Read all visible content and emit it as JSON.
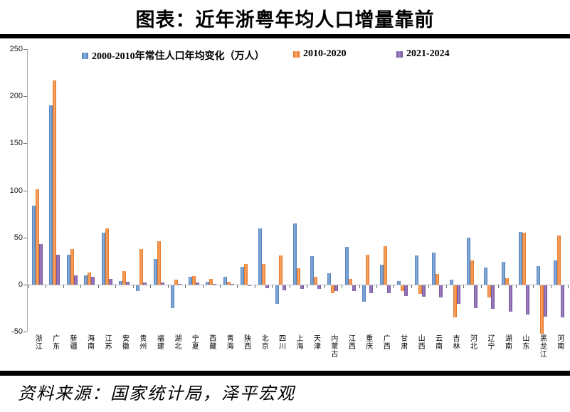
{
  "title": "图表：近年浙粤年均人口增量靠前",
  "source": "资料来源：国家统计局，泽平宏观",
  "chart_data": {
    "type": "bar",
    "title": "近年浙粤年均人口增量靠前",
    "unit": "万人",
    "ylim": [
      -50,
      250
    ],
    "y_ticks": [
      250,
      200,
      150,
      100,
      50,
      0,
      -50
    ],
    "grid": false,
    "legend_position": "top",
    "categories": [
      "浙江",
      "广东",
      "新疆",
      "海南",
      "江苏",
      "安徽",
      "贵州",
      "福建",
      "湖北",
      "宁夏",
      "西藏",
      "青海",
      "陕西",
      "北京",
      "四川",
      "上海",
      "天津",
      "内蒙古",
      "江西",
      "重庆",
      "广西",
      "甘肃",
      "山西",
      "云南",
      "吉林",
      "河北",
      "辽宁",
      "湖南",
      "山东",
      "黑龙江",
      "河南"
    ],
    "series": [
      {
        "name": "2000-2010年常住人口年均变化（万人）",
        "color": "#5b8bc5",
        "color_light": "#8fb3e0",
        "color_dark": "#4a7ab5",
        "values": [
          84,
          190,
          32,
          10,
          55,
          4,
          -6,
          27,
          -24,
          8,
          3,
          8,
          19,
          60,
          -20,
          65,
          30,
          12,
          40,
          -17,
          21,
          4,
          31,
          34,
          5,
          50,
          18,
          24,
          56,
          20,
          26
        ]
      },
      {
        "name": "2010-2020",
        "color": "#f28a3d",
        "color_light": "#fbaa70",
        "color_dark": "#e2711c",
        "values": [
          101,
          217,
          38,
          13,
          60,
          14,
          38,
          46,
          5,
          9,
          6,
          3,
          22,
          22,
          31,
          17,
          8,
          -8,
          6,
          32,
          41,
          -6,
          -9,
          11,
          -34,
          26,
          -13,
          7,
          55,
          -51,
          52
        ]
      },
      {
        "name": "2021-2024",
        "color": "#8566ab",
        "color_light": "#a486c6",
        "color_dark": "#6f4f97",
        "values": [
          43,
          32,
          10,
          8,
          6,
          3,
          2,
          2,
          1,
          2,
          1,
          1,
          -1,
          -3,
          -5,
          -4,
          -4,
          -6,
          -6,
          -8,
          -8,
          -11,
          -12,
          -13,
          -20,
          -24,
          -25,
          -28,
          -31,
          -33,
          -34
        ]
      }
    ]
  }
}
